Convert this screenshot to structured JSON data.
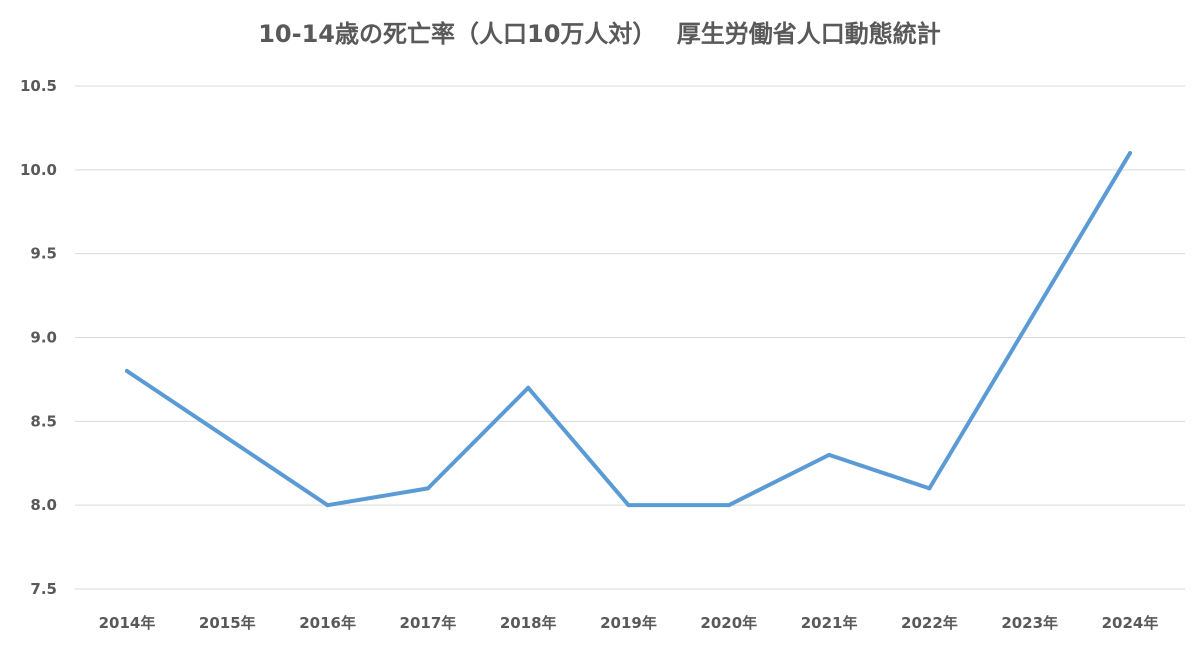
{
  "chart_data": {
    "type": "line",
    "title": "10-14歳の死亡率（人口10万人対）　 厚生労働省人口動態統計",
    "categories": [
      "2014年",
      "2015年",
      "2016年",
      "2017年",
      "2018年",
      "2019年",
      "2020年",
      "2021年",
      "2022年",
      "2023年",
      "2024年"
    ],
    "series": [
      {
        "values": [
          8.8,
          8.4,
          8.0,
          8.1,
          8.7,
          8.0,
          8.0,
          8.3,
          8.1,
          9.1,
          10.1
        ],
        "color": "#5B9BD5"
      }
    ],
    "ylim": [
      7.5,
      10.5
    ],
    "yticks": [
      "7.5",
      "8.0",
      "8.5",
      "9.0",
      "9.5",
      "10.0",
      "10.5"
    ],
    "grid": true,
    "legend": "none",
    "colors": {
      "line": "#5B9BD5",
      "grid": "#d9d9d9",
      "text": "#595959"
    }
  }
}
